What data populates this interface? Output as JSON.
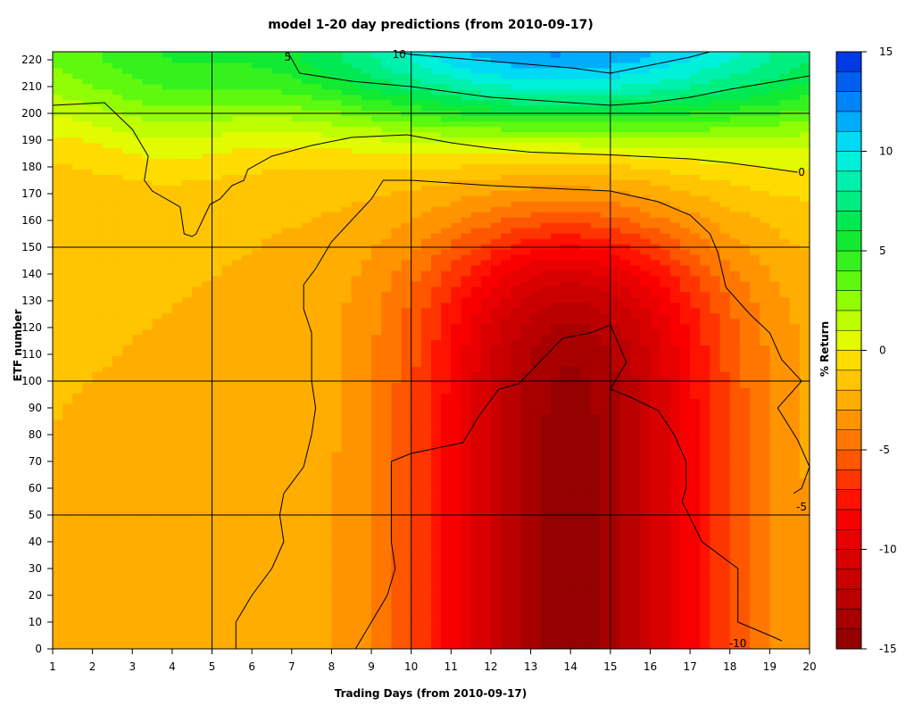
{
  "chart_data": {
    "type": "heatmap",
    "title_prefix": "",
    "title": "model 1-20 day predictions (from 2010-09-17)",
    "xlabel": "Trading Days (from 2010-09-17)",
    "ylabel": "ETF number",
    "colorbar_label": "% Return",
    "xlim": [
      1,
      20
    ],
    "ylim": [
      0,
      223
    ],
    "zlim": [
      -15,
      15
    ],
    "x_ticks": [
      1,
      2,
      3,
      4,
      5,
      6,
      7,
      8,
      9,
      10,
      11,
      12,
      13,
      14,
      15,
      16,
      17,
      18,
      19,
      20
    ],
    "y_ticks": [
      0,
      10,
      20,
      30,
      40,
      50,
      60,
      70,
      80,
      90,
      100,
      110,
      120,
      130,
      140,
      150,
      160,
      170,
      180,
      190,
      200,
      210,
      220
    ],
    "colorbar_ticks": [
      -15,
      -10,
      -5,
      0,
      5,
      10,
      15
    ],
    "grid_x": [
      5,
      10,
      15
    ],
    "grid_y": [
      50,
      100,
      150,
      200
    ],
    "color_levels_step": 1,
    "contour_labels": [
      {
        "text": "5",
        "x": 6.9,
        "y": 221
      },
      {
        "text": "10",
        "x": 9.7,
        "y": 222
      },
      {
        "text": "0",
        "x": 19.8,
        "y": 178
      },
      {
        "text": "-5",
        "x": 19.8,
        "y": 53
      },
      {
        "text": "-10",
        "x": 18.2,
        "y": 2
      }
    ],
    "contours": [
      {
        "level": 10,
        "points": [
          [
            9.6,
            223
          ],
          [
            10,
            222
          ],
          [
            12,
            219.5
          ],
          [
            14,
            217
          ],
          [
            15,
            215
          ],
          [
            16,
            218
          ],
          [
            17,
            221
          ],
          [
            17.5,
            223
          ]
        ]
      },
      {
        "level": 5,
        "points": [
          [
            6.9,
            223
          ],
          [
            7.2,
            215
          ],
          [
            8.5,
            212
          ],
          [
            10,
            210
          ],
          [
            12,
            206
          ],
          [
            14,
            204
          ],
          [
            15,
            203
          ],
          [
            16,
            204
          ],
          [
            17,
            206
          ],
          [
            18,
            209
          ],
          [
            20,
            214
          ]
        ]
      },
      {
        "level": 0,
        "points": [
          [
            1,
            203
          ],
          [
            2.3,
            204
          ],
          [
            3,
            194
          ],
          [
            3.4,
            184
          ],
          [
            3.3,
            175
          ],
          [
            3.5,
            171
          ],
          [
            4.2,
            165
          ],
          [
            4.3,
            155
          ],
          [
            4.5,
            154
          ],
          [
            4.6,
            155
          ],
          [
            4.95,
            166
          ],
          [
            5.2,
            168
          ],
          [
            5.5,
            173
          ],
          [
            5.8,
            175
          ],
          [
            5.9,
            179
          ],
          [
            6.5,
            184
          ],
          [
            7.5,
            188
          ],
          [
            8.5,
            191
          ],
          [
            9.9,
            192
          ],
          [
            11,
            189
          ],
          [
            12,
            187
          ],
          [
            13,
            185.5
          ],
          [
            15,
            184.5
          ],
          [
            17,
            183
          ],
          [
            18,
            181.5
          ],
          [
            19,
            179.5
          ],
          [
            19.7,
            178
          ]
        ]
      },
      {
        "level": -5,
        "points": [
          [
            5.6,
            0
          ],
          [
            5.6,
            10
          ],
          [
            6,
            20
          ],
          [
            6.5,
            30
          ],
          [
            6.8,
            40
          ],
          [
            6.7,
            50
          ],
          [
            6.8,
            58
          ],
          [
            7.3,
            68
          ],
          [
            7.5,
            80
          ],
          [
            7.6,
            90
          ],
          [
            7.5,
            100
          ],
          [
            7.5,
            110
          ],
          [
            7.5,
            118
          ],
          [
            7.3,
            127
          ],
          [
            7.3,
            136
          ],
          [
            7.6,
            142
          ],
          [
            8,
            152
          ],
          [
            8.5,
            160
          ],
          [
            9,
            168
          ],
          [
            9.3,
            175
          ],
          [
            10,
            175
          ],
          [
            12,
            173
          ],
          [
            15,
            171
          ],
          [
            16.2,
            167
          ],
          [
            17,
            162
          ],
          [
            17.5,
            155
          ],
          [
            17.7,
            148
          ],
          [
            17.9,
            135
          ],
          [
            18.5,
            125
          ],
          [
            19,
            118
          ],
          [
            19.3,
            108
          ],
          [
            19.8,
            100
          ],
          [
            19.2,
            90
          ],
          [
            19.7,
            78
          ],
          [
            20,
            68
          ],
          [
            19.8,
            60
          ],
          [
            19.6,
            58
          ]
        ]
      },
      {
        "level": -10,
        "points": [
          [
            8.6,
            0
          ],
          [
            9,
            10
          ],
          [
            9.4,
            20
          ],
          [
            9.6,
            30
          ],
          [
            9.5,
            40
          ],
          [
            9.5,
            50
          ],
          [
            9.5,
            60
          ],
          [
            9.5,
            70
          ],
          [
            10,
            73
          ],
          [
            11.3,
            77
          ],
          [
            11.7,
            87
          ],
          [
            12.2,
            97
          ],
          [
            12.7,
            99
          ],
          [
            13.8,
            116
          ],
          [
            14.5,
            118
          ],
          [
            15,
            121
          ],
          [
            15.4,
            107
          ],
          [
            15,
            97
          ],
          [
            15.5,
            94
          ],
          [
            16.2,
            89
          ],
          [
            16.6,
            80
          ],
          [
            16.9,
            70
          ],
          [
            16.9,
            60
          ],
          [
            16.8,
            55
          ],
          [
            17.3,
            40
          ],
          [
            18.2,
            30
          ],
          [
            18.2,
            20
          ],
          [
            18.2,
            10
          ],
          [
            19,
            5
          ],
          [
            19.3,
            3
          ]
        ]
      }
    ]
  }
}
